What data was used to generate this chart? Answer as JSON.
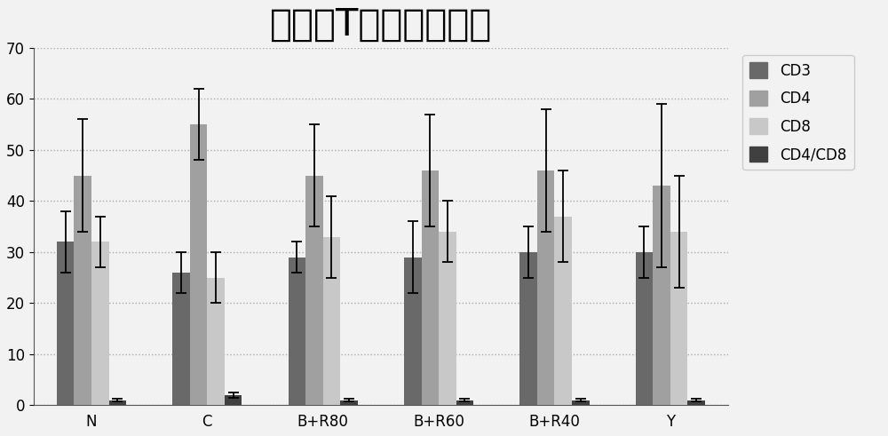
{
  "title": "外周血T淋巴细胞变化",
  "categories": [
    "N",
    "C",
    "B+R80",
    "B+R60",
    "B+R40",
    "Y"
  ],
  "series": {
    "CD3": [
      32,
      26,
      29,
      29,
      30,
      30
    ],
    "CD4": [
      45,
      55,
      45,
      46,
      46,
      43
    ],
    "CD8": [
      32,
      25,
      33,
      34,
      37,
      34
    ],
    "CD4/CD8": [
      1,
      2,
      1,
      1,
      1,
      1
    ]
  },
  "errors": {
    "CD3": [
      6,
      4,
      3,
      7,
      5,
      5
    ],
    "CD4": [
      11,
      7,
      10,
      11,
      12,
      16
    ],
    "CD8": [
      5,
      5,
      8,
      6,
      9,
      11
    ],
    "CD4/CD8": [
      0.3,
      0.5,
      0.3,
      0.3,
      0.3,
      0.3
    ]
  },
  "colors": {
    "CD3": "#696969",
    "CD4": "#a0a0a0",
    "CD8": "#c8c8c8",
    "CD4/CD8": "#404040"
  },
  "ylim": [
    0,
    70
  ],
  "yticks": [
    0,
    10,
    20,
    30,
    40,
    50,
    60,
    70
  ],
  "background_color": "#f2f2f2",
  "plot_bg_color": "#f2f2f2",
  "grid_color": "#999999",
  "title_fontsize": 30,
  "bar_width": 0.15,
  "legend_fontsize": 12,
  "tick_fontsize": 12,
  "series_order": [
    "CD3",
    "CD4",
    "CD8",
    "CD4/CD8"
  ]
}
